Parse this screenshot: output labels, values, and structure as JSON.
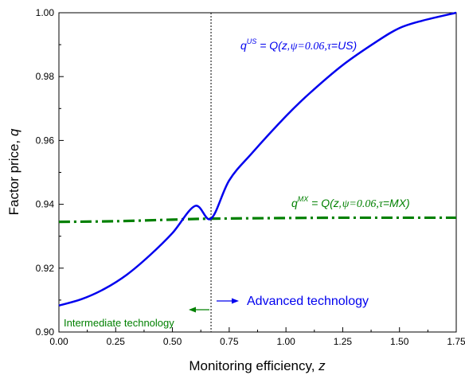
{
  "chart_data": {
    "type": "line",
    "xlabel_main": "Monitoring efficiency, ",
    "xlabel_var": "z",
    "ylabel_main": "Factor price, ",
    "ylabel_var": "q",
    "xlim": [
      0,
      1.75
    ],
    "ylim": [
      0.9,
      1.0
    ],
    "xticks": [
      0.0,
      0.25,
      0.5,
      0.75,
      1.0,
      1.25,
      1.5,
      1.75
    ],
    "xtick_labels": [
      "0.00",
      "0.25",
      "0.50",
      "0.75",
      "1.00",
      "1.25",
      "1.50",
      "1.75"
    ],
    "yticks": [
      0.9,
      0.92,
      0.94,
      0.96,
      0.98,
      1.0
    ],
    "ytick_labels": [
      "0.90",
      "0.92",
      "0.94",
      "0.96",
      "0.98",
      "1.00"
    ],
    "grid": false,
    "threshold_x": 0.67,
    "series": [
      {
        "id": "us",
        "color": "#0000ee",
        "style": "solid",
        "x": [
          0.0,
          0.1,
          0.2,
          0.3,
          0.4,
          0.5,
          0.6,
          0.67,
          0.75,
          0.85,
          1.0,
          1.1,
          1.25,
          1.4,
          1.5,
          1.6,
          1.75
        ],
        "y": [
          0.9083,
          0.9103,
          0.9135,
          0.918,
          0.924,
          0.931,
          0.9395,
          0.9355,
          0.9475,
          0.956,
          0.9676,
          0.9745,
          0.9836,
          0.991,
          0.9952,
          0.9975,
          1.0
        ]
      },
      {
        "id": "mx",
        "color": "#008000",
        "style": "dashdot",
        "x": [
          0.0,
          0.25,
          0.5,
          0.67,
          1.0,
          1.25,
          1.5,
          1.75
        ],
        "y": [
          0.9345,
          0.9347,
          0.9352,
          0.9355,
          0.9357,
          0.9358,
          0.9358,
          0.9358
        ]
      }
    ],
    "annotations": {
      "us": {
        "q": "q",
        "sup": "US",
        "mid": " = Q(z,",
        "psi": "ψ=0.06,",
        "tau": "τ",
        "end": "=US)"
      },
      "mx": {
        "q": "q",
        "sup": "MX",
        "mid": " = Q(z,",
        "psi": "ψ=0.06,",
        "tau": "τ",
        "end": "=MX)"
      }
    },
    "regions": {
      "advanced": "Advanced technology",
      "intermediate": "Intermediate technology"
    }
  }
}
